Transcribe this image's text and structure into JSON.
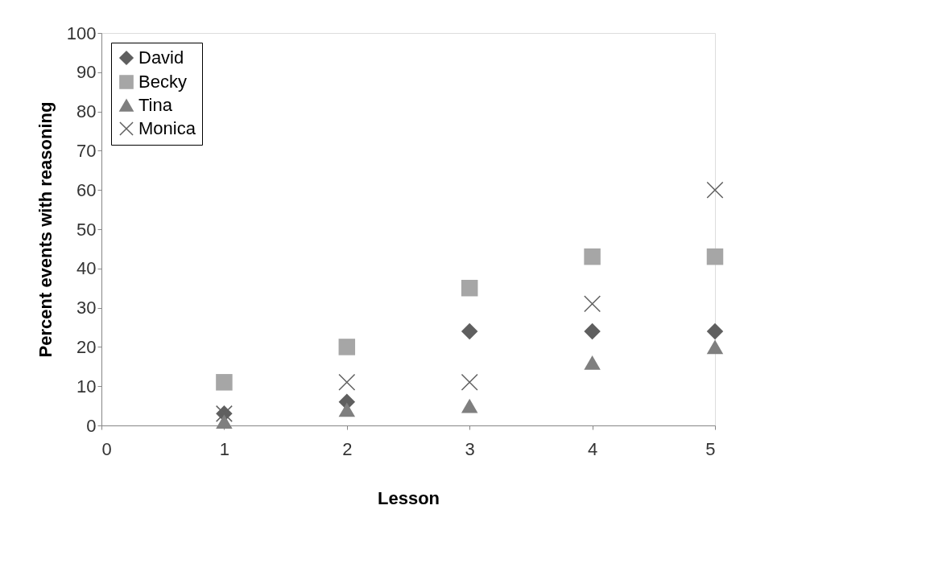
{
  "chart_data": {
    "type": "scatter",
    "xlabel": "Lesson",
    "ylabel": "Percent events with reasoning",
    "x": [
      1,
      2,
      3,
      4,
      5
    ],
    "series": [
      {
        "name": "David",
        "color": "#5f5f5f",
        "marker": "diamond",
        "values": [
          3,
          6,
          24,
          24,
          24
        ]
      },
      {
        "name": "Becky",
        "color": "#a6a6a6",
        "marker": "square",
        "values": [
          11,
          20,
          35,
          43,
          43
        ]
      },
      {
        "name": "Tina",
        "color": "#7f7f7f",
        "marker": "triangle",
        "values": [
          1,
          4,
          5,
          16,
          20
        ]
      },
      {
        "name": "Monica",
        "color": "#606060",
        "marker": "cross",
        "values": [
          3,
          11,
          11,
          31,
          60
        ]
      }
    ],
    "xlim": [
      0,
      5
    ],
    "xticks": [
      0,
      1,
      2,
      3,
      4,
      5
    ],
    "ylim": [
      0,
      100
    ],
    "yticks": [
      0,
      10,
      20,
      30,
      40,
      50,
      60,
      70,
      80,
      90,
      100
    ],
    "grid": false,
    "legend": "top left"
  }
}
